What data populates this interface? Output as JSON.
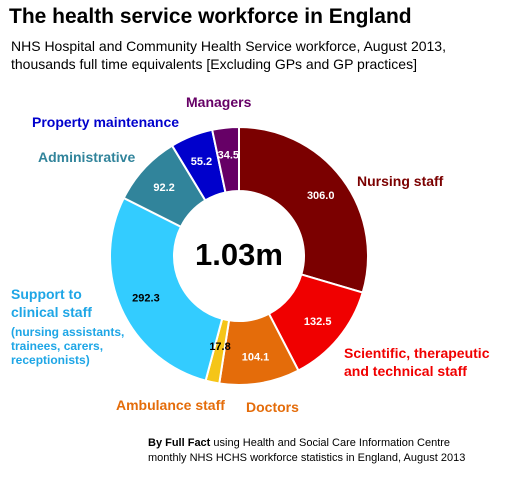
{
  "title": "The health service workforce in England",
  "subtitle_lines": [
    "NHS Hospital and Community Health Service workforce, August 2013,",
    "thousands full time equivalents [Excluding GPs and GP practices]"
  ],
  "credit": {
    "bold": "By Full Fact",
    "line1_rest": " using Health and Social Care Information Centre",
    "line2": "monthly NHS HCHS workforce statistics in England, August 2013"
  },
  "chart_data": {
    "type": "pie",
    "title": "The health service workforce in England",
    "center_label": "1.03m",
    "units": "thousands full time equivalents",
    "slices": [
      {
        "name": "Nursing staff",
        "value": 306.0,
        "value_label": "306.0",
        "color": "#7b0000"
      },
      {
        "name": "Scientific, therapeutic and technical staff",
        "value": 132.5,
        "value_label": "132.5",
        "color": "#f00000"
      },
      {
        "name": "Doctors",
        "value": 104.1,
        "value_label": "104.1",
        "color": "#e46c0a"
      },
      {
        "name": "Ambulance staff",
        "value": 17.8,
        "value_label": "17.8",
        "color": "#f5c518"
      },
      {
        "name": "Support to clinical staff",
        "value": 292.3,
        "value_label": "292.3",
        "color": "#33ccff"
      },
      {
        "name": "Administrative",
        "value": 92.2,
        "value_label": "92.2",
        "color": "#31849b"
      },
      {
        "name": "Property maintenance",
        "value": 55.2,
        "value_label": "55.2",
        "color": "#0000cc"
      },
      {
        "name": "Managers",
        "value": 34.5,
        "value_label": "34.5",
        "color": "#660066"
      }
    ],
    "category_labels": [
      {
        "lines": [
          "Nursing staff"
        ],
        "color": "#7b0000"
      },
      {
        "lines": [
          "Scientific, therapeutic",
          "and technical staff"
        ],
        "color": "#f00000"
      },
      {
        "lines": [
          "Doctors"
        ],
        "color": "#e46c0a"
      },
      {
        "lines": [
          "Ambulance staff"
        ],
        "color": "#e46c0a"
      },
      {
        "lines": [
          "Support to",
          "clinical staff"
        ],
        "color": "#1ea6e6",
        "note_lines": [
          "(nursing assistants,",
          "trainees, carers,",
          "receptionists)"
        ]
      },
      {
        "lines": [
          "Administrative"
        ],
        "color": "#31849b"
      },
      {
        "lines": [
          "Property maintenance"
        ],
        "color": "#0000cc"
      },
      {
        "lines": [
          "Managers"
        ],
        "color": "#660066"
      }
    ]
  }
}
